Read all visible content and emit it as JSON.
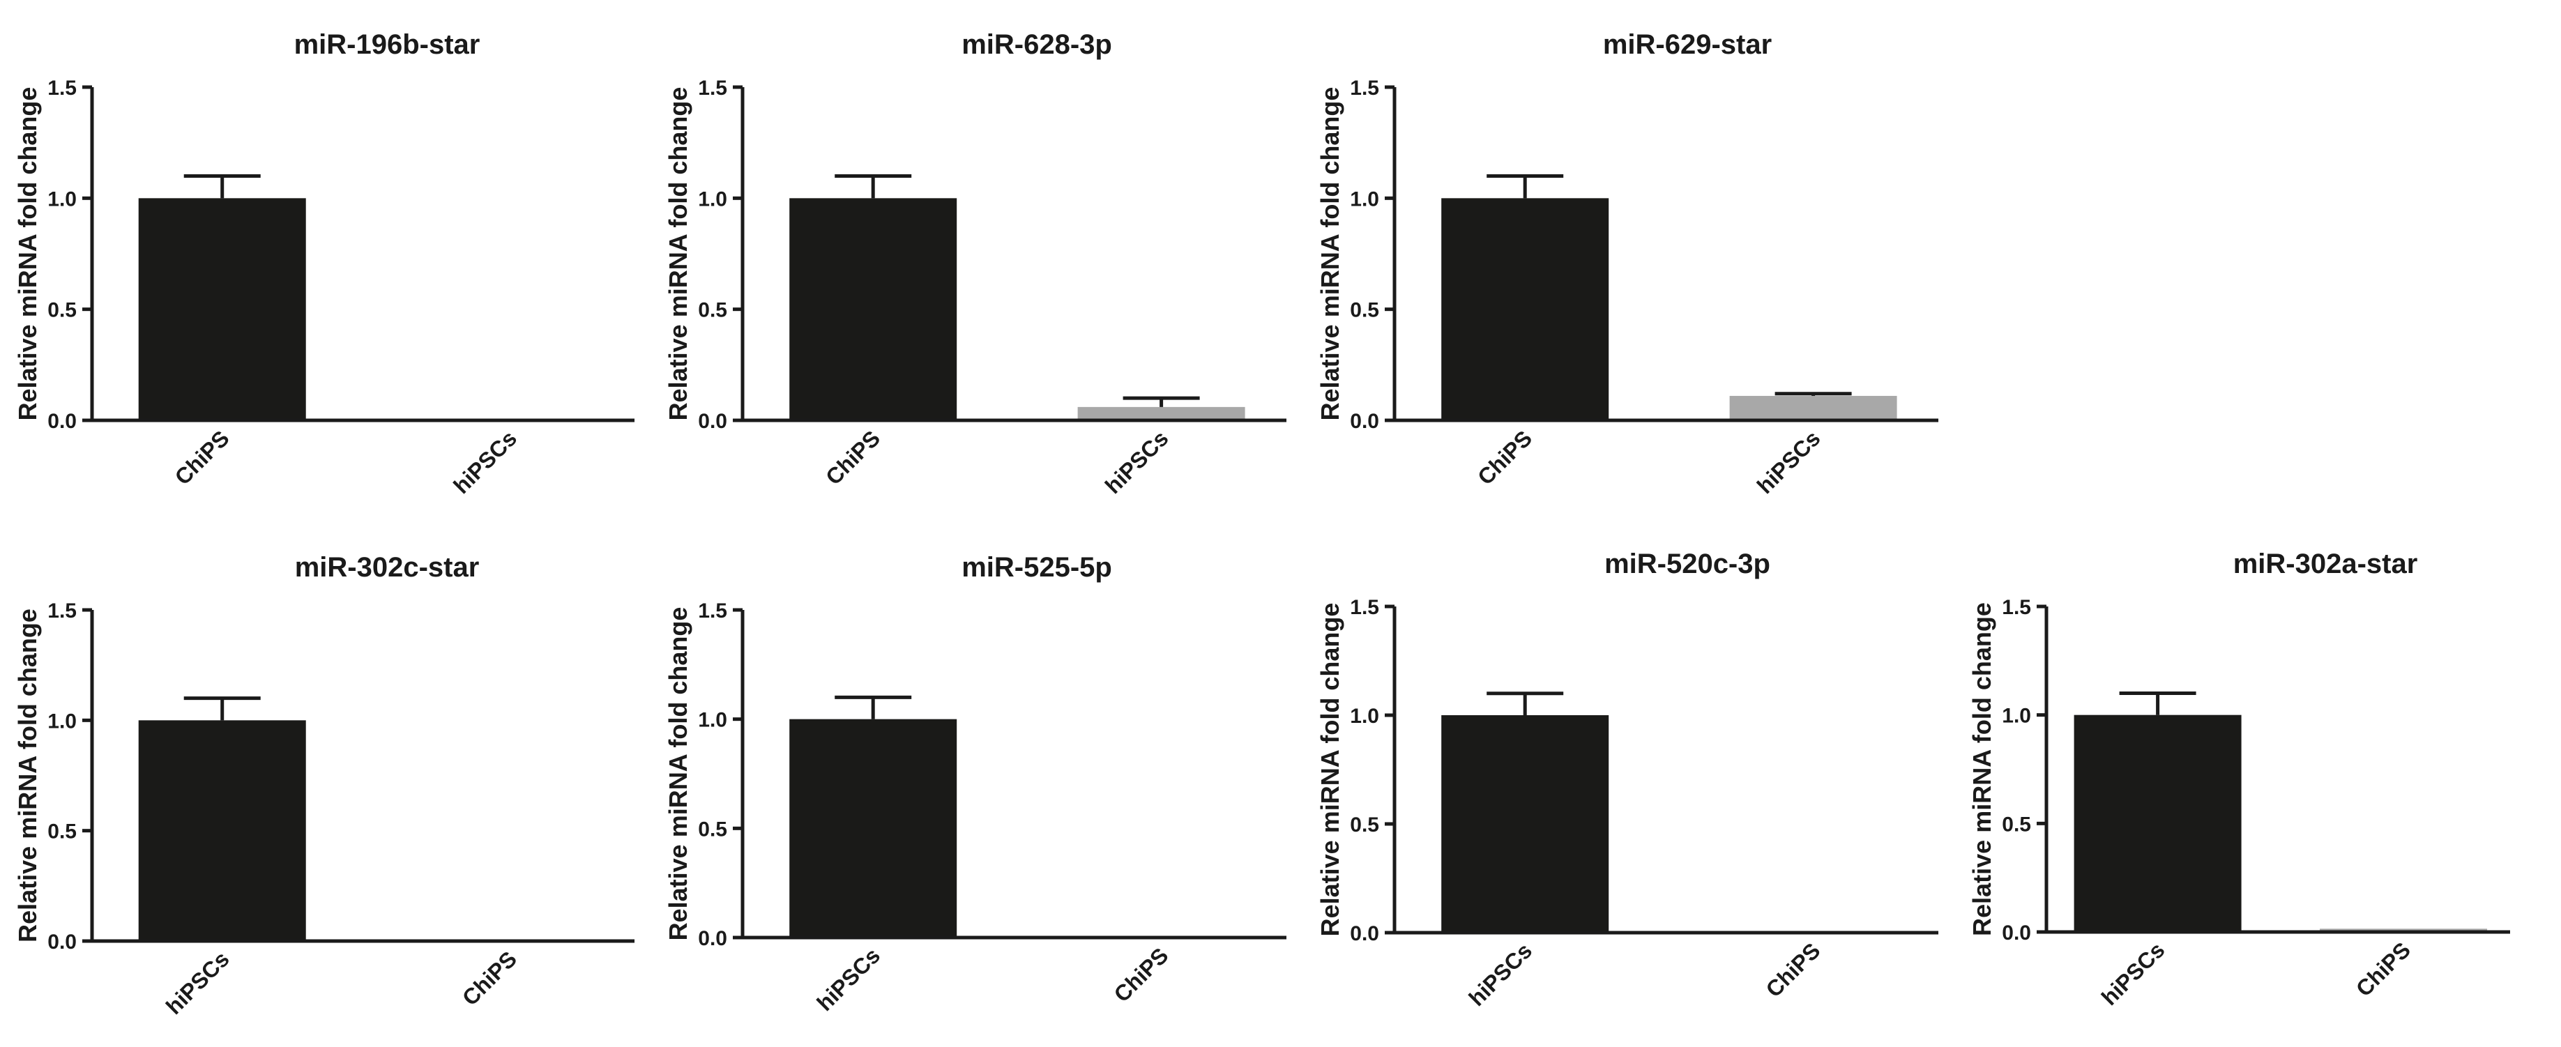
{
  "chart_data": [
    {
      "type": "bar",
      "title": "miR-196b-star",
      "ylabel": "Relative miRNA fold change",
      "xlabel": "",
      "ylim": [
        0,
        1.5
      ],
      "yticks": [
        "0.0",
        "0.5",
        "1.0",
        "1.5"
      ],
      "categories": [
        "ChiPS",
        "hiPSCs"
      ],
      "values": [
        1.0,
        0.0
      ],
      "errors": [
        0.1,
        0.0
      ],
      "colors": [
        "#1a1a18",
        "#a8a8a8"
      ]
    },
    {
      "type": "bar",
      "title": "miR-628-3p",
      "ylabel": "Relative miRNA fold change",
      "xlabel": "",
      "ylim": [
        0,
        1.5
      ],
      "yticks": [
        "0.0",
        "0.5",
        "1.0",
        "1.5"
      ],
      "categories": [
        "ChiPS",
        "hiPSCs"
      ],
      "values": [
        1.0,
        0.06
      ],
      "errors": [
        0.1,
        0.04
      ],
      "colors": [
        "#1a1a18",
        "#a8a8a8"
      ]
    },
    {
      "type": "bar",
      "title": "miR-629-star",
      "ylabel": "Relative miRNA fold change",
      "xlabel": "",
      "ylim": [
        0,
        1.5
      ],
      "yticks": [
        "0.0",
        "0.5",
        "1.0",
        "1.5"
      ],
      "categories": [
        "ChiPS",
        "hiPSCs"
      ],
      "values": [
        1.0,
        0.11
      ],
      "errors": [
        0.1,
        0.01
      ],
      "colors": [
        "#1a1a18",
        "#a8a8a8"
      ]
    },
    {
      "type": "bar",
      "title": "miR-302c-star",
      "ylabel": "Relative miRNA fold change",
      "xlabel": "",
      "ylim": [
        0,
        1.5
      ],
      "yticks": [
        "0.0",
        "0.5",
        "1.0",
        "1.5"
      ],
      "categories": [
        "hiPSCs",
        "ChiPS"
      ],
      "values": [
        1.0,
        0.005
      ],
      "errors": [
        0.1,
        0.0
      ],
      "colors": [
        "#1a1a18",
        "#a8a8a8"
      ]
    },
    {
      "type": "bar",
      "title": "miR-525-5p",
      "ylabel": "Relative miRNA fold change",
      "xlabel": "",
      "ylim": [
        0,
        1.5
      ],
      "yticks": [
        "0.0",
        "0.5",
        "1.0",
        "1.5"
      ],
      "categories": [
        "hiPSCs",
        "ChiPS"
      ],
      "values": [
        1.0,
        0.0
      ],
      "errors": [
        0.1,
        0.0
      ],
      "colors": [
        "#1a1a18",
        "#a8a8a8"
      ]
    },
    {
      "type": "bar",
      "title": "miR-520c-3p",
      "ylabel": "Relative miRNA fold change",
      "xlabel": "",
      "ylim": [
        0,
        1.5
      ],
      "yticks": [
        "0.0",
        "0.5",
        "1.0",
        "1.5"
      ],
      "categories": [
        "hiPSCs",
        "ChiPS"
      ],
      "values": [
        1.0,
        0.0
      ],
      "errors": [
        0.1,
        0.0
      ],
      "colors": [
        "#1a1a18",
        "#a8a8a8"
      ]
    },
    {
      "type": "bar",
      "title": "miR-302a-star",
      "ylabel": "Relative miRNA fold change",
      "xlabel": "",
      "ylim": [
        0,
        1.5
      ],
      "yticks": [
        "0.0",
        "0.5",
        "1.0",
        "1.5"
      ],
      "categories": [
        "hiPSCs",
        "ChiPS"
      ],
      "values": [
        1.0,
        0.015
      ],
      "errors": [
        0.1,
        0.0
      ],
      "colors": [
        "#1a1a18",
        "#a8a8a8"
      ]
    }
  ]
}
